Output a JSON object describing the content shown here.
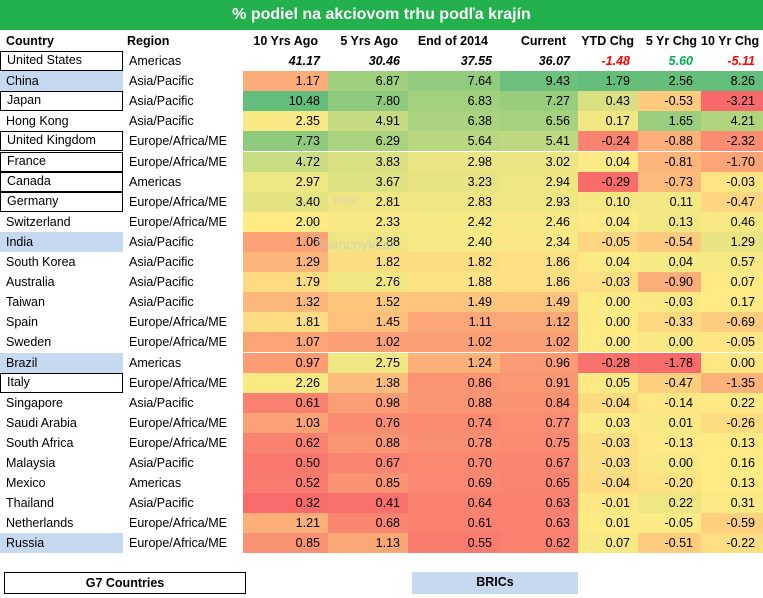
{
  "title": "% podiel na akciovom trhu podľa krajín",
  "columns": [
    "Country",
    "Region",
    "10 Yrs Ago",
    "5 Yrs Ago",
    "End of 2014",
    "Current",
    "YTD Chg",
    "5 Yr Chg",
    "10 Yr Chg"
  ],
  "summary_row": {
    "country": "United States",
    "region": "Americas",
    "y10": "41.17",
    "y5": "30.46",
    "e14": "37.55",
    "cur": "36.07",
    "ytd": "-1.48",
    "c5": "5.60",
    "c10": "-5.11"
  },
  "rows": [
    {
      "country": "China",
      "region": "Asia/Pacific",
      "y10": "1.17",
      "y5": "6.87",
      "e14": "7.64",
      "cur": "9.43",
      "ytd": "1.79",
      "c5": "2.56",
      "c10": "8.26",
      "group": "bric"
    },
    {
      "country": "Japan",
      "region": "Asia/Pacific",
      "y10": "10.48",
      "y5": "7.80",
      "e14": "6.83",
      "cur": "7.27",
      "ytd": "0.43",
      "c5": "-0.53",
      "c10": "-3.21",
      "group": "g7"
    },
    {
      "country": "Hong Kong",
      "region": "Asia/Pacific",
      "y10": "2.35",
      "y5": "4.91",
      "e14": "6.38",
      "cur": "6.56",
      "ytd": "0.17",
      "c5": "1.65",
      "c10": "4.21",
      "group": ""
    },
    {
      "country": "United Kingdom",
      "region": "Europe/Africa/ME",
      "y10": "7.73",
      "y5": "6.29",
      "e14": "5.64",
      "cur": "5.41",
      "ytd": "-0.24",
      "c5": "-0.88",
      "c10": "-2.32",
      "group": "g7"
    },
    {
      "country": "France",
      "region": "Europe/Africa/ME",
      "y10": "4.72",
      "y5": "3.83",
      "e14": "2.98",
      "cur": "3.02",
      "ytd": "0.04",
      "c5": "-0.81",
      "c10": "-1.70",
      "group": "g7"
    },
    {
      "country": "Canada",
      "region": "Americas",
      "y10": "2.97",
      "y5": "3.67",
      "e14": "3.23",
      "cur": "2.94",
      "ytd": "-0.29",
      "c5": "-0.73",
      "c10": "-0.03",
      "group": "g7"
    },
    {
      "country": "Germany",
      "region": "Europe/Africa/ME",
      "y10": "3.40",
      "y5": "2.81",
      "e14": "2.83",
      "cur": "2.93",
      "ytd": "0.10",
      "c5": "0.11",
      "c10": "-0.47",
      "group": "g7"
    },
    {
      "country": "Switzerland",
      "region": "Europe/Africa/ME",
      "y10": "2.00",
      "y5": "2.33",
      "e14": "2.42",
      "cur": "2.46",
      "ytd": "0.04",
      "c5": "0.13",
      "c10": "0.46",
      "group": ""
    },
    {
      "country": "India",
      "region": "Asia/Pacific",
      "y10": "1.06",
      "y5": "2.88",
      "e14": "2.40",
      "cur": "2.34",
      "ytd": "-0.05",
      "c5": "-0.54",
      "c10": "1.29",
      "group": "bric"
    },
    {
      "country": "South Korea",
      "region": "Asia/Pacific",
      "y10": "1.29",
      "y5": "1.82",
      "e14": "1.82",
      "cur": "1.86",
      "ytd": "0.04",
      "c5": "0.04",
      "c10": "0.57",
      "group": ""
    },
    {
      "country": "Australia",
      "region": "Asia/Pacific",
      "y10": "1.79",
      "y5": "2.76",
      "e14": "1.88",
      "cur": "1.86",
      "ytd": "-0.03",
      "c5": "-0.90",
      "c10": "0.07",
      "group": ""
    },
    {
      "country": "Taiwan",
      "region": "Asia/Pacific",
      "y10": "1.32",
      "y5": "1.52",
      "e14": "1.49",
      "cur": "1.49",
      "ytd": "0.00",
      "c5": "-0.03",
      "c10": "0.17",
      "group": ""
    },
    {
      "country": "Spain",
      "region": "Europe/Africa/ME",
      "y10": "1.81",
      "y5": "1.45",
      "e14": "1.11",
      "cur": "1.12",
      "ytd": "0.00",
      "c5": "-0.33",
      "c10": "-0.69",
      "group": ""
    },
    {
      "country": "Sweden",
      "region": "Europe/Africa/ME",
      "y10": "1.07",
      "y5": "1.02",
      "e14": "1.02",
      "cur": "1.02",
      "ytd": "0.00",
      "c5": "0.00",
      "c10": "-0.05",
      "group": ""
    },
    {
      "country": "Brazil",
      "region": "Americas",
      "y10": "0.97",
      "y5": "2.75",
      "e14": "1.24",
      "cur": "0.96",
      "ytd": "-0.28",
      "c5": "-1.78",
      "c10": "0.00",
      "group": "bric"
    },
    {
      "country": "Italy",
      "region": "Europe/Africa/ME",
      "y10": "2.26",
      "y5": "1.38",
      "e14": "0.86",
      "cur": "0.91",
      "ytd": "0.05",
      "c5": "-0.47",
      "c10": "-1.35",
      "group": "g7"
    },
    {
      "country": "Singapore",
      "region": "Asia/Pacific",
      "y10": "0.61",
      "y5": "0.98",
      "e14": "0.88",
      "cur": "0.84",
      "ytd": "-0.04",
      "c5": "-0.14",
      "c10": "0.22",
      "group": ""
    },
    {
      "country": "Saudi Arabia",
      "region": "Europe/Africa/ME",
      "y10": "1.03",
      "y5": "0.76",
      "e14": "0.74",
      "cur": "0.77",
      "ytd": "0.03",
      "c5": "0.01",
      "c10": "-0.26",
      "group": ""
    },
    {
      "country": "South Africa",
      "region": "Europe/Africa/ME",
      "y10": "0.62",
      "y5": "0.88",
      "e14": "0.78",
      "cur": "0.75",
      "ytd": "-0.03",
      "c5": "-0.13",
      "c10": "0.13",
      "group": ""
    },
    {
      "country": "Malaysia",
      "region": "Asia/Pacific",
      "y10": "0.50",
      "y5": "0.67",
      "e14": "0.70",
      "cur": "0.67",
      "ytd": "-0.03",
      "c5": "0.00",
      "c10": "0.16",
      "group": ""
    },
    {
      "country": "Mexico",
      "region": "Americas",
      "y10": "0.52",
      "y5": "0.85",
      "e14": "0.69",
      "cur": "0.65",
      "ytd": "-0.04",
      "c5": "-0.20",
      "c10": "0.13",
      "group": ""
    },
    {
      "country": "Thailand",
      "region": "Asia/Pacific",
      "y10": "0.32",
      "y5": "0.41",
      "e14": "0.64",
      "cur": "0.63",
      "ytd": "-0.01",
      "c5": "0.22",
      "c10": "0.31",
      "group": ""
    },
    {
      "country": "Netherlands",
      "region": "Europe/Africa/ME",
      "y10": "1.21",
      "y5": "0.68",
      "e14": "0.61",
      "cur": "0.63",
      "ytd": "0.01",
      "c5": "-0.05",
      "c10": "-0.59",
      "group": ""
    },
    {
      "country": "Russia",
      "region": "Europe/Africa/ME",
      "y10": "0.85",
      "y5": "1.13",
      "e14": "0.55",
      "cur": "0.62",
      "ytd": "0.07",
      "c5": "-0.51",
      "c10": "-0.22",
      "group": "bric"
    }
  ],
  "legend": {
    "g7": "G7 Countries",
    "bric": "BRICs"
  },
  "watermark": {
    "line1": "Preis",
    "line2": "financnyklub"
  },
  "colors": {
    "title_bg": "#22b14c",
    "bric_bg": "#c6d9f0",
    "neg": "#ff0000",
    "pos": "#00b050"
  }
}
